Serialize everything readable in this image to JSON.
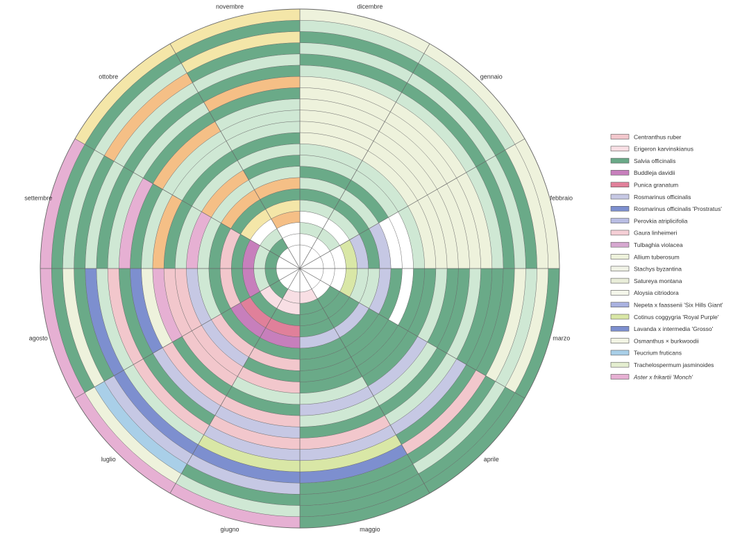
{
  "chart_data": {
    "type": "radial-calendar",
    "months": [
      "dicembre",
      "gennaio",
      "febbraio",
      "marzo",
      "aprile",
      "maggio",
      "giugno",
      "luglio",
      "agosto",
      "settembre",
      "ottobre",
      "novembre"
    ],
    "colors": {
      "salvia": "#6aaa88",
      "sage_light": "#cfe8d4",
      "pink": "#f2c7cc",
      "pink_light": "#f8dfe4",
      "magenta": "#c77fbc",
      "punica": "#e0809a",
      "lilac": "#c6c8e4",
      "blue": "#7d8fcf",
      "orange": "#f5bf86",
      "yellow": "#f4e6a8",
      "cream": "#eef2dc",
      "lime": "#d9e7a6",
      "teal": "#a9cfe8",
      "mauve": "#e6b0d3",
      "grid": "#666666"
    },
    "rings": [
      {
        "series": "Centranthus ruber",
        "arcs": [
          [
            "pink_light",
            5,
            7
          ],
          [
            "salvia",
            7,
            11
          ]
        ]
      },
      {
        "series": "Erigeron karvinskianus",
        "arcs": [
          [
            "pink_light",
            6,
            8
          ],
          [
            "salvia",
            4,
            6
          ],
          [
            "sage_light",
            8,
            11
          ],
          [
            "sage_light",
            0,
            2
          ]
        ]
      },
      {
        "series": "Salvia officinalis",
        "arcs": [
          [
            "lime",
            2,
            4
          ],
          [
            "magenta",
            8,
            10
          ],
          [
            "salvia",
            4,
            8
          ],
          [
            "orange",
            11,
            12
          ]
        ]
      },
      {
        "series": "Buddleja davidii",
        "arcs": [
          [
            "punica",
            6,
            8
          ],
          [
            "yellow",
            10,
            12
          ],
          [
            "sage_light",
            0,
            4
          ],
          [
            "salvia",
            4,
            6
          ],
          [
            "lilac",
            2,
            3
          ],
          [
            "salvia",
            8,
            10
          ]
        ]
      },
      {
        "series": "Punica granatum",
        "arcs": [
          [
            "salvia",
            10,
            12
          ],
          [
            "salvia",
            0,
            3
          ],
          [
            "sage_light",
            3,
            4
          ],
          [
            "magenta",
            6,
            8
          ],
          [
            "pink",
            8,
            10
          ],
          [
            "lilac",
            4,
            6
          ]
        ]
      },
      {
        "series": "Rosmarinus officinalis",
        "arcs": [
          [
            "orange",
            10,
            12
          ],
          [
            "sage_light",
            0,
            2
          ],
          [
            "lilac",
            2,
            4
          ],
          [
            "salvia",
            4,
            6
          ],
          [
            "salvia",
            6,
            10
          ]
        ]
      },
      {
        "series": "Rosmarinus officinalis 'Prostratus'",
        "arcs": [
          [
            "salvia",
            0,
            2
          ],
          [
            "salvia",
            3,
            6
          ],
          [
            "pink",
            6,
            8
          ],
          [
            "sage_light",
            8,
            10
          ],
          [
            "sage_light",
            10,
            12
          ]
        ]
      },
      {
        "series": "Perovkia atriplicifolia",
        "arcs": [
          [
            "salvia",
            4,
            7
          ],
          [
            "lilac",
            7,
            9
          ],
          [
            "mauve",
            9,
            10
          ],
          [
            "orange",
            10,
            11
          ],
          [
            "salvia",
            11,
            12
          ],
          [
            "sage_light",
            0,
            2
          ]
        ]
      },
      {
        "series": "Gaura linheimeri",
        "arcs": [
          [
            "sage_light",
            0,
            3
          ],
          [
            "salvia",
            3,
            6
          ],
          [
            "pink",
            6,
            9
          ],
          [
            "sage_light",
            9,
            12
          ]
        ]
      },
      {
        "series": "Tulbaghia violacea",
        "arcs": [
          [
            "cream",
            0,
            3
          ],
          [
            "salvia",
            3,
            5
          ],
          [
            "sage_light",
            5,
            7
          ],
          [
            "pink",
            7,
            9
          ],
          [
            "salvia",
            9,
            12
          ]
        ]
      },
      {
        "series": "Allium tuberosum",
        "arcs": [
          [
            "cream",
            0,
            3
          ],
          [
            "sage_light",
            3,
            4
          ],
          [
            "lilac",
            4,
            6
          ],
          [
            "salvia",
            6,
            8
          ],
          [
            "mauve",
            8,
            9
          ],
          [
            "orange",
            9,
            10
          ],
          [
            "sage_light",
            10,
            12
          ]
        ]
      },
      {
        "series": "Stachys byzantina",
        "arcs": [
          [
            "salvia",
            3,
            4
          ],
          [
            "sage_light",
            4,
            6
          ],
          [
            "pink",
            6,
            8
          ],
          [
            "cream",
            8,
            9
          ],
          [
            "sage_light",
            9,
            12
          ],
          [
            "cream",
            0,
            3
          ]
        ]
      },
      {
        "series": "Satureya montana",
        "arcs": [
          [
            "cream",
            0,
            3
          ],
          [
            "salvia",
            3,
            6
          ],
          [
            "lilac",
            6,
            8
          ],
          [
            "blue",
            8,
            9
          ],
          [
            "salvia",
            9,
            10
          ],
          [
            "orange",
            10,
            11
          ],
          [
            "sage_light",
            11,
            12
          ]
        ]
      },
      {
        "series": "Aloysia citriodora",
        "arcs": [
          [
            "cream",
            0,
            3
          ],
          [
            "sage_light",
            3,
            5
          ],
          [
            "pink",
            5,
            7
          ],
          [
            "salvia",
            7,
            9
          ],
          [
            "mauve",
            9,
            10
          ],
          [
            "salvia",
            10,
            12
          ]
        ]
      },
      {
        "series": "Nepeta x faassenii 'Six Hills Giant'",
        "arcs": [
          [
            "cream",
            0,
            3
          ],
          [
            "salvia",
            3,
            4
          ],
          [
            "lilac",
            4,
            7
          ],
          [
            "pink",
            7,
            9
          ],
          [
            "sage_light",
            9,
            11
          ],
          [
            "orange",
            11,
            12
          ]
        ]
      },
      {
        "series": "Cotinus coggygria 'Royal Purple'",
        "arcs": [
          [
            "sage_light",
            0,
            3
          ],
          [
            "salvia",
            3,
            5
          ],
          [
            "lime",
            5,
            7
          ],
          [
            "sage_light",
            7,
            9
          ],
          [
            "salvia",
            9,
            12
          ]
        ]
      },
      {
        "series": "Lavanda x intermedia 'Grosso'",
        "arcs": [
          [
            "salvia",
            0,
            4
          ],
          [
            "pink",
            4,
            5
          ],
          [
            "blue",
            5,
            8
          ],
          [
            "blue",
            8,
            9
          ],
          [
            "sage_light",
            9,
            12
          ]
        ]
      },
      {
        "series": "Osmanthus × burkwoodii",
        "arcs": [
          [
            "sage_light",
            0,
            3
          ],
          [
            "cream",
            3,
            4
          ],
          [
            "salvia",
            4,
            6
          ],
          [
            "lilac",
            6,
            8
          ],
          [
            "salvia",
            8,
            10
          ],
          [
            "orange",
            10,
            11
          ],
          [
            "salvia",
            11,
            12
          ]
        ]
      },
      {
        "series": "Teucrium fruticans",
        "arcs": [
          [
            "salvia",
            0,
            3
          ],
          [
            "sage_light",
            3,
            5
          ],
          [
            "salvia",
            5,
            7
          ],
          [
            "teal",
            7,
            8
          ],
          [
            "cream",
            8,
            9
          ],
          [
            "sage_light",
            9,
            11
          ],
          [
            "yellow",
            11,
            12
          ]
        ]
      },
      {
        "series": "Trachelospermum jasminoides",
        "arcs": [
          [
            "sage_light",
            0,
            2
          ],
          [
            "cream",
            2,
            4
          ],
          [
            "salvia",
            4,
            6
          ],
          [
            "sage_light",
            6,
            7
          ],
          [
            "cream",
            7,
            8
          ],
          [
            "salvia",
            8,
            10
          ],
          [
            "salvia",
            10,
            12
          ]
        ]
      },
      {
        "series": "Aster x frikartii 'Monch'",
        "arcs": [
          [
            "cream",
            0,
            3
          ],
          [
            "salvia",
            3,
            5
          ],
          [
            "salvia",
            5,
            6
          ],
          [
            "mauve",
            6,
            9
          ],
          [
            "mauve",
            9,
            10
          ],
          [
            "yellow",
            10,
            12
          ]
        ]
      }
    ],
    "legend": [
      {
        "name": "Centranthus ruber",
        "color": "#f2c7cc",
        "italic": false
      },
      {
        "name": "Erigeron karvinskianus",
        "color": "#f8dfe4",
        "italic": false
      },
      {
        "name": "Salvia officinalis",
        "color": "#6aaa88",
        "italic": false
      },
      {
        "name": "Buddleja davidii",
        "color": "#c77fbc",
        "italic": false
      },
      {
        "name": "Punica granatum",
        "color": "#e0809a",
        "italic": false
      },
      {
        "name": "Rosmarinus officinalis",
        "color": "#c6c8e4",
        "italic": false
      },
      {
        "name": "Rosmarinus officinalis 'Prostratus'",
        "color": "#7d8fcf",
        "italic": false
      },
      {
        "name": "Perovkia atriplicifolia",
        "color": "#b9bde3",
        "italic": false
      },
      {
        "name": "Gaura linheimeri",
        "color": "#f5cfd6",
        "italic": false
      },
      {
        "name": "Tulbaghia violacea",
        "color": "#d6a8d0",
        "italic": false
      },
      {
        "name": "Allium tuberosum",
        "color": "#eef2dc",
        "italic": false
      },
      {
        "name": "Stachys byzantina",
        "color": "#f0f2e6",
        "italic": false
      },
      {
        "name": "Satureya montana",
        "color": "#e9edd9",
        "italic": false
      },
      {
        "name": "Aloysia citriodora",
        "color": "#f4f6ea",
        "italic": false
      },
      {
        "name": "Nepeta x faassenii 'Six Hills Giant'",
        "color": "#a9b1df",
        "italic": false
      },
      {
        "name": "Cotinus coggygria 'Royal Purple'",
        "color": "#d9e7a6",
        "italic": false
      },
      {
        "name": "Lavanda x intermedia 'Grosso'",
        "color": "#7d8fcf",
        "italic": false
      },
      {
        "name": "Osmanthus × burkwoodii",
        "color": "#f2f4e4",
        "italic": false
      },
      {
        "name": "Teucrium fruticans",
        "color": "#a9cfe8",
        "italic": false
      },
      {
        "name": "Trachelospermum jasminoides",
        "color": "#e4eed0",
        "italic": false
      },
      {
        "name": "Aster x frikartii 'Monch'",
        "color": "#e6b0d3",
        "italic": true
      }
    ]
  }
}
